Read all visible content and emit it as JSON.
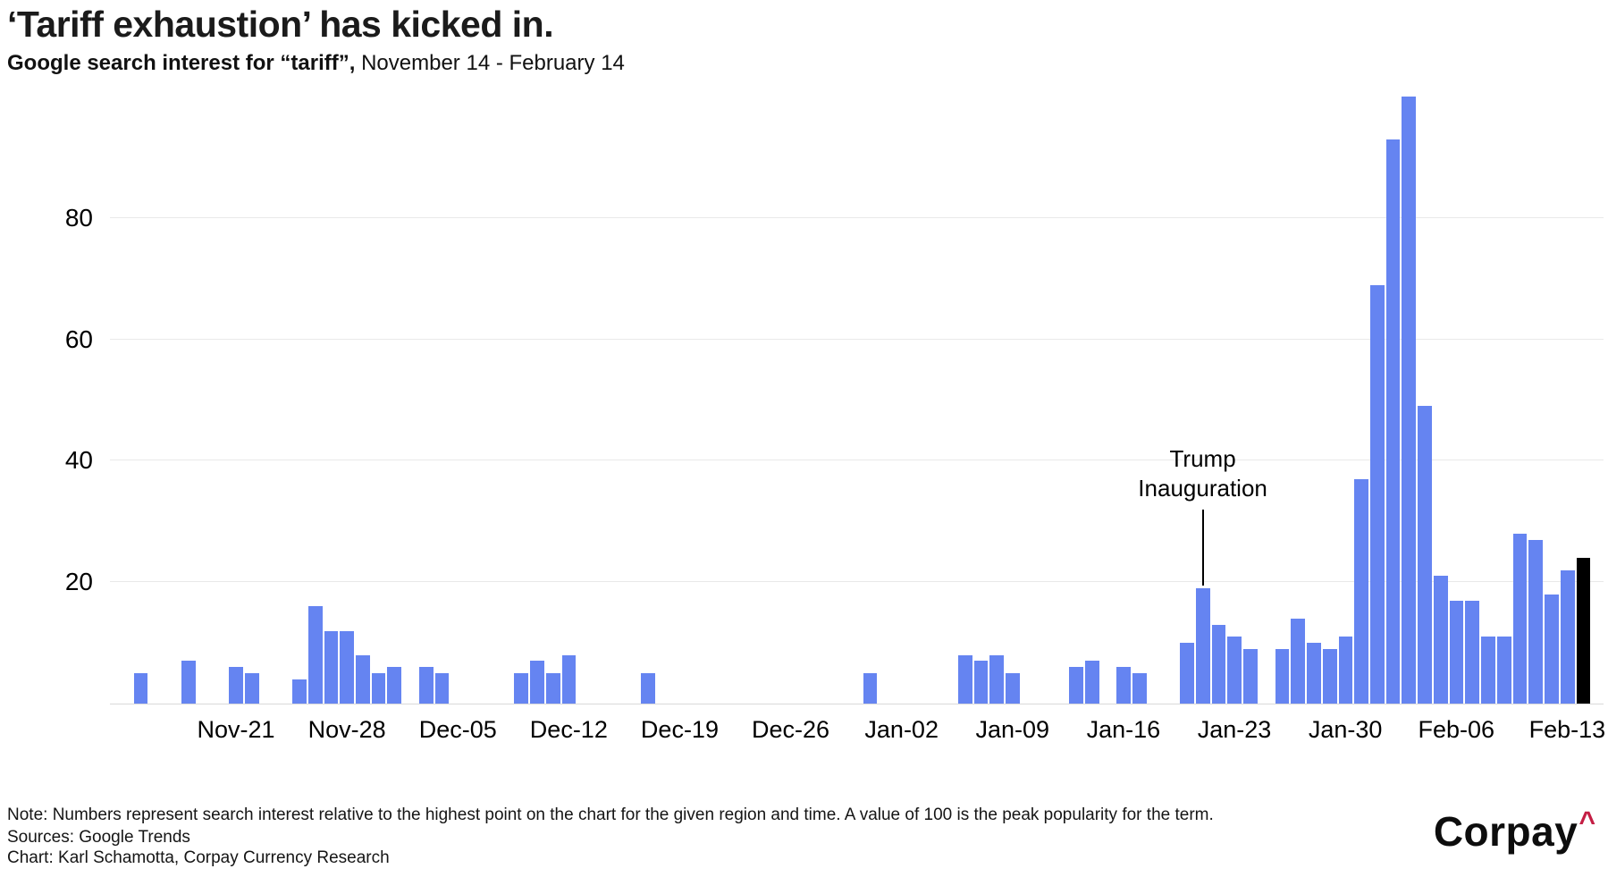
{
  "header": {
    "title": "‘Tariff exhaustion’ has kicked in.",
    "subtitle_bold": "Google search interest for “tariff”,",
    "subtitle_rest": " November 14 - February 14"
  },
  "chart_data": {
    "type": "bar",
    "title": "‘Tariff exhaustion’ has kicked in.",
    "subtitle": "Google search interest for “tariff”, November 14 - February 14",
    "ylim": [
      0,
      100
    ],
    "y_ticks": [
      20,
      40,
      60,
      80
    ],
    "grid": "horizontal",
    "legend": "none",
    "bar_color": "#6584F1",
    "highlight_color": "#000000",
    "highlight_index": 92,
    "dates": [
      "Nov-14",
      "Nov-15",
      "Nov-16",
      "Nov-17",
      "Nov-18",
      "Nov-19",
      "Nov-20",
      "Nov-21",
      "Nov-22",
      "Nov-23",
      "Nov-24",
      "Nov-25",
      "Nov-26",
      "Nov-27",
      "Nov-28",
      "Nov-29",
      "Nov-30",
      "Dec-01",
      "Dec-02",
      "Dec-03",
      "Dec-04",
      "Dec-05",
      "Dec-06",
      "Dec-07",
      "Dec-08",
      "Dec-09",
      "Dec-10",
      "Dec-11",
      "Dec-12",
      "Dec-13",
      "Dec-14",
      "Dec-15",
      "Dec-16",
      "Dec-17",
      "Dec-18",
      "Dec-19",
      "Dec-20",
      "Dec-21",
      "Dec-22",
      "Dec-23",
      "Dec-24",
      "Dec-25",
      "Dec-26",
      "Dec-27",
      "Dec-28",
      "Dec-29",
      "Dec-30",
      "Dec-31",
      "Jan-01",
      "Jan-02",
      "Jan-03",
      "Jan-04",
      "Jan-05",
      "Jan-06",
      "Jan-07",
      "Jan-08",
      "Jan-09",
      "Jan-10",
      "Jan-11",
      "Jan-12",
      "Jan-13",
      "Jan-14",
      "Jan-15",
      "Jan-16",
      "Jan-17",
      "Jan-18",
      "Jan-19",
      "Jan-20",
      "Jan-21",
      "Jan-22",
      "Jan-23",
      "Jan-24",
      "Jan-25",
      "Jan-26",
      "Jan-27",
      "Jan-28",
      "Jan-29",
      "Jan-30",
      "Jan-31",
      "Feb-01",
      "Feb-02",
      "Feb-03",
      "Feb-04",
      "Feb-05",
      "Feb-06",
      "Feb-07",
      "Feb-08",
      "Feb-09",
      "Feb-10",
      "Feb-11",
      "Feb-12",
      "Feb-13",
      "Feb-14"
    ],
    "values": [
      0,
      5,
      0,
      0,
      7,
      0,
      0,
      6,
      5,
      0,
      0,
      4,
      16,
      12,
      12,
      8,
      5,
      6,
      0,
      6,
      5,
      0,
      0,
      0,
      0,
      5,
      7,
      5,
      8,
      0,
      0,
      0,
      0,
      5,
      0,
      0,
      0,
      0,
      0,
      0,
      0,
      0,
      0,
      0,
      0,
      0,
      0,
      5,
      0,
      0,
      0,
      0,
      0,
      8,
      7,
      8,
      5,
      0,
      0,
      0,
      6,
      7,
      0,
      6,
      5,
      0,
      0,
      10,
      19,
      13,
      11,
      9,
      0,
      9,
      14,
      10,
      9,
      11,
      37,
      69,
      93,
      100,
      49,
      21,
      17,
      17,
      11,
      11,
      28,
      27,
      18,
      22,
      24
    ],
    "x_ticks": [
      {
        "label": "Nov-21",
        "day": 7
      },
      {
        "label": "Nov-28",
        "day": 14
      },
      {
        "label": "Dec-05",
        "day": 21
      },
      {
        "label": "Dec-12",
        "day": 28
      },
      {
        "label": "Dec-19",
        "day": 35
      },
      {
        "label": "Dec-26",
        "day": 42
      },
      {
        "label": "Jan-02",
        "day": 49
      },
      {
        "label": "Jan-09",
        "day": 56
      },
      {
        "label": "Jan-16",
        "day": 63
      },
      {
        "label": "Jan-23",
        "day": 70
      },
      {
        "label": "Jan-30",
        "day": 77
      },
      {
        "label": "Feb-06",
        "day": 84
      },
      {
        "label": "Feb-13",
        "day": 91
      }
    ],
    "annotation": {
      "line1": "Trump",
      "line2": "Inauguration",
      "day": 68,
      "target_value": 19
    }
  },
  "footer": {
    "note": "Note: Numbers represent search interest relative to the highest point on the chart for the given region and time. A value of 100 is the peak popularity for the term.",
    "sources": "Sources: Google Trends",
    "credit": "Chart: Karl Schamotta, Corpay Currency Research"
  },
  "logo": {
    "text": "Corpay",
    "caret": "^",
    "caret_color": "#C41E44"
  }
}
